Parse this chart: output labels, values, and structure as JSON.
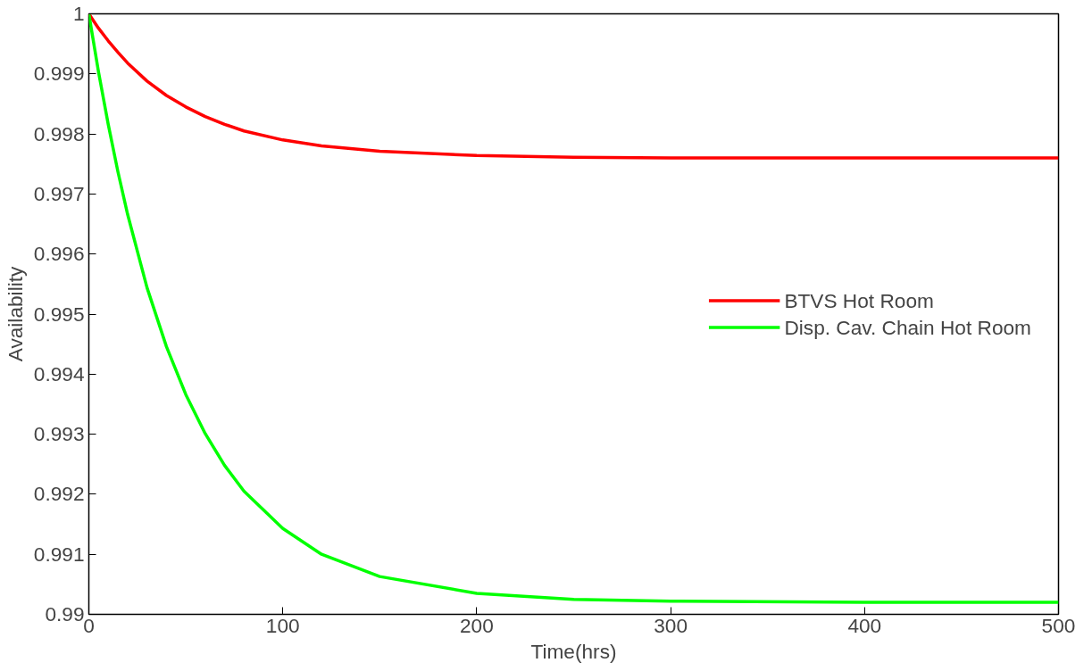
{
  "chart_data": {
    "type": "line",
    "xlabel": "Time(hrs)",
    "ylabel": "Availability",
    "x": [
      0,
      5,
      10,
      15,
      20,
      30,
      40,
      50,
      60,
      70,
      80,
      100,
      120,
      150,
      200,
      250,
      300,
      400,
      500
    ],
    "series": [
      {
        "name": "BTVS Hot Room",
        "color": "#ff0000",
        "values": [
          1,
          0.99976,
          0.99955,
          0.99936,
          0.99918,
          0.99888,
          0.99864,
          0.99845,
          0.99829,
          0.99816,
          0.99805,
          0.9979,
          0.9978,
          0.99771,
          0.99764,
          0.99761,
          0.9976,
          0.9976,
          0.9976
        ]
      },
      {
        "name": "Disp. Cav. Chain Hot Room",
        "color": "#00ff00",
        "values": [
          1,
          0.99903,
          0.99816,
          0.99737,
          0.99666,
          0.99544,
          0.99446,
          0.99366,
          0.99301,
          0.99248,
          0.99205,
          0.99143,
          0.991,
          0.99063,
          0.99035,
          0.99025,
          0.99022,
          0.9902,
          0.9902
        ]
      }
    ],
    "xlim": [
      0,
      500
    ],
    "xticks": [
      0,
      100,
      200,
      300,
      400,
      500
    ],
    "ylim": [
      0.99,
      1
    ],
    "yticks": [
      0.99,
      0.991,
      0.992,
      0.993,
      0.994,
      0.995,
      0.996,
      0.997,
      0.998,
      0.999,
      1
    ],
    "grid": false,
    "legend": "right",
    "marker": "none",
    "line_style": "solid"
  }
}
